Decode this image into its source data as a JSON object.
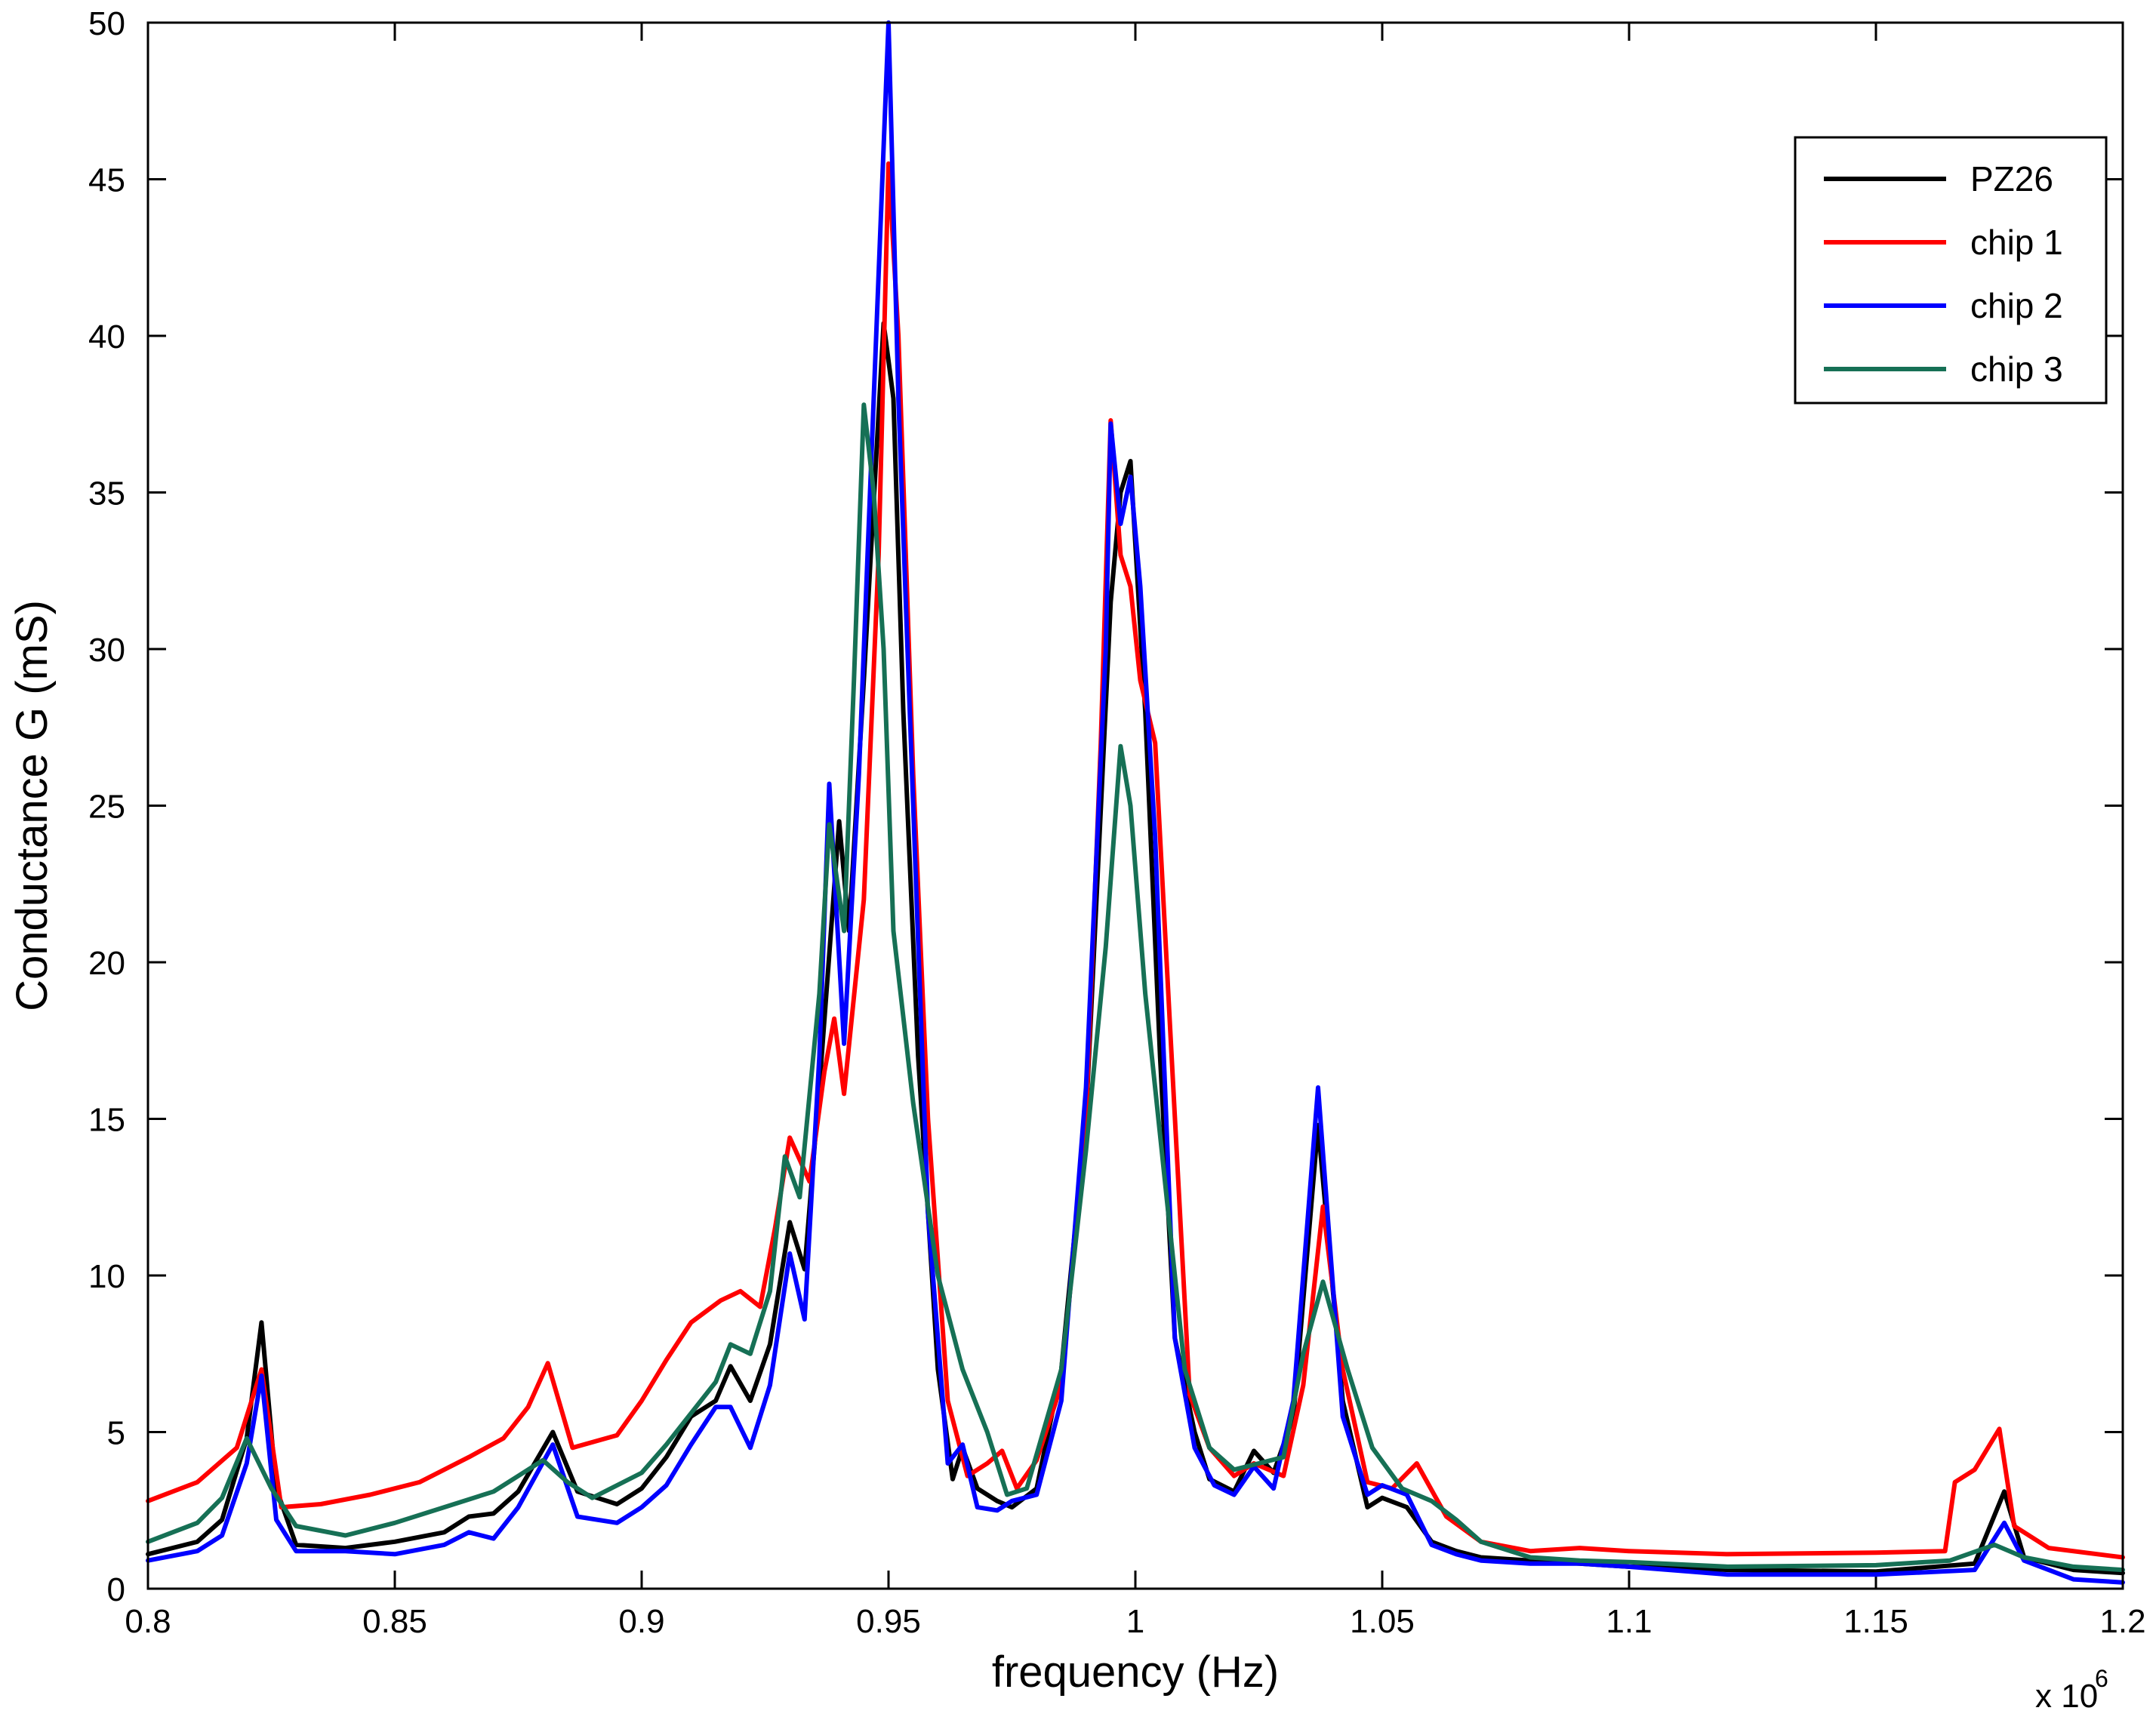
{
  "chart_data": {
    "type": "line",
    "title": "",
    "xlabel": "frequency (Hz)",
    "ylabel": "Conductance G (mS)",
    "x_exponent_label": "x 10",
    "x_exponent_power": "6",
    "xlim": [
      0.8,
      1.2
    ],
    "ylim": [
      0,
      50
    ],
    "xticks": [
      0.8,
      0.85,
      0.9,
      0.95,
      1.0,
      1.05,
      1.1,
      1.15,
      1.2
    ],
    "xtick_labels": [
      "0.8",
      "0.85",
      "0.9",
      "0.95",
      "1",
      "1.05",
      "1.1",
      "1.15",
      "1.2"
    ],
    "yticks": [
      0,
      5,
      10,
      15,
      20,
      25,
      30,
      35,
      40,
      45,
      50
    ],
    "ytick_labels": [
      "0",
      "5",
      "10",
      "15",
      "20",
      "25",
      "30",
      "35",
      "40",
      "45",
      "50"
    ],
    "grid": false,
    "legend_position": "top-right",
    "series": [
      {
        "name": "PZ26",
        "color": "#000000",
        "points": [
          [
            0.8,
            1.1
          ],
          [
            0.81,
            1.5
          ],
          [
            0.815,
            2.2
          ],
          [
            0.82,
            4.8
          ],
          [
            0.823,
            8.5
          ],
          [
            0.826,
            3.2
          ],
          [
            0.83,
            1.4
          ],
          [
            0.84,
            1.3
          ],
          [
            0.85,
            1.5
          ],
          [
            0.86,
            1.8
          ],
          [
            0.865,
            2.3
          ],
          [
            0.87,
            2.4
          ],
          [
            0.875,
            3.1
          ],
          [
            0.882,
            5.0
          ],
          [
            0.887,
            3.1
          ],
          [
            0.895,
            2.7
          ],
          [
            0.9,
            3.2
          ],
          [
            0.905,
            4.2
          ],
          [
            0.91,
            5.5
          ],
          [
            0.915,
            6.0
          ],
          [
            0.918,
            7.1
          ],
          [
            0.922,
            6.0
          ],
          [
            0.926,
            7.8
          ],
          [
            0.93,
            11.7
          ],
          [
            0.933,
            10.2
          ],
          [
            0.936,
            16.0
          ],
          [
            0.94,
            24.5
          ],
          [
            0.942,
            21.0
          ],
          [
            0.945,
            29.0
          ],
          [
            0.949,
            40.4
          ],
          [
            0.951,
            38.0
          ],
          [
            0.953,
            28.0
          ],
          [
            0.956,
            17.0
          ],
          [
            0.96,
            7.0
          ],
          [
            0.963,
            3.5
          ],
          [
            0.965,
            4.5
          ],
          [
            0.968,
            3.2
          ],
          [
            0.972,
            2.8
          ],
          [
            0.975,
            2.6
          ],
          [
            0.98,
            3.2
          ],
          [
            0.985,
            7.0
          ],
          [
            0.99,
            15.0
          ],
          [
            0.995,
            31.5
          ],
          [
            0.997,
            35.0
          ],
          [
            0.999,
            36.0
          ],
          [
            1.002,
            28.0
          ],
          [
            1.005,
            17.0
          ],
          [
            1.008,
            8.0
          ],
          [
            1.012,
            5.0
          ],
          [
            1.015,
            3.5
          ],
          [
            1.02,
            3.1
          ],
          [
            1.024,
            4.4
          ],
          [
            1.028,
            3.7
          ],
          [
            1.032,
            5.5
          ],
          [
            1.037,
            14.8
          ],
          [
            1.042,
            6.0
          ],
          [
            1.047,
            2.6
          ],
          [
            1.05,
            2.9
          ],
          [
            1.055,
            2.6
          ],
          [
            1.06,
            1.5
          ],
          [
            1.065,
            1.2
          ],
          [
            1.07,
            1.0
          ],
          [
            1.08,
            0.9
          ],
          [
            1.09,
            0.8
          ],
          [
            1.1,
            0.7
          ],
          [
            1.12,
            0.6
          ],
          [
            1.15,
            0.55
          ],
          [
            1.17,
            0.8
          ],
          [
            1.176,
            3.1
          ],
          [
            1.18,
            1.0
          ],
          [
            1.19,
            0.6
          ],
          [
            1.2,
            0.5
          ]
        ]
      },
      {
        "name": "chip 1",
        "color": "#ff0000",
        "points": [
          [
            0.8,
            2.8
          ],
          [
            0.81,
            3.4
          ],
          [
            0.818,
            4.5
          ],
          [
            0.823,
            7.0
          ],
          [
            0.827,
            2.6
          ],
          [
            0.835,
            2.7
          ],
          [
            0.845,
            3.0
          ],
          [
            0.855,
            3.4
          ],
          [
            0.865,
            4.2
          ],
          [
            0.872,
            4.8
          ],
          [
            0.877,
            5.8
          ],
          [
            0.881,
            7.2
          ],
          [
            0.886,
            4.5
          ],
          [
            0.895,
            4.9
          ],
          [
            0.9,
            6.0
          ],
          [
            0.905,
            7.3
          ],
          [
            0.91,
            8.5
          ],
          [
            0.916,
            9.2
          ],
          [
            0.92,
            9.5
          ],
          [
            0.924,
            9.0
          ],
          [
            0.927,
            11.5
          ],
          [
            0.93,
            14.4
          ],
          [
            0.934,
            13.0
          ],
          [
            0.937,
            16.5
          ],
          [
            0.939,
            18.2
          ],
          [
            0.941,
            15.8
          ],
          [
            0.945,
            22.0
          ],
          [
            0.948,
            33.0
          ],
          [
            0.95,
            45.5
          ],
          [
            0.952,
            40.0
          ],
          [
            0.955,
            26.0
          ],
          [
            0.958,
            15.0
          ],
          [
            0.962,
            6.0
          ],
          [
            0.966,
            3.6
          ],
          [
            0.97,
            4.0
          ],
          [
            0.973,
            4.4
          ],
          [
            0.976,
            3.2
          ],
          [
            0.98,
            4.1
          ],
          [
            0.985,
            6.5
          ],
          [
            0.99,
            15.0
          ],
          [
            0.993,
            27.0
          ],
          [
            0.995,
            37.3
          ],
          [
            0.997,
            33.0
          ],
          [
            0.999,
            32.0
          ],
          [
            1.001,
            29.0
          ],
          [
            1.004,
            27.0
          ],
          [
            1.007,
            18.0
          ],
          [
            1.011,
            6.2
          ],
          [
            1.015,
            4.5
          ],
          [
            1.02,
            3.6
          ],
          [
            1.024,
            4.0
          ],
          [
            1.03,
            3.6
          ],
          [
            1.034,
            6.5
          ],
          [
            1.038,
            12.2
          ],
          [
            1.042,
            7.0
          ],
          [
            1.047,
            3.4
          ],
          [
            1.052,
            3.2
          ],
          [
            1.057,
            4.0
          ],
          [
            1.063,
            2.3
          ],
          [
            1.07,
            1.5
          ],
          [
            1.08,
            1.2
          ],
          [
            1.09,
            1.3
          ],
          [
            1.1,
            1.2
          ],
          [
            1.12,
            1.1
          ],
          [
            1.15,
            1.15
          ],
          [
            1.164,
            1.2
          ],
          [
            1.166,
            3.4
          ],
          [
            1.17,
            3.8
          ],
          [
            1.175,
            5.1
          ],
          [
            1.178,
            2.0
          ],
          [
            1.185,
            1.3
          ],
          [
            1.2,
            1.0
          ]
        ]
      },
      {
        "name": "chip 2",
        "color": "#0000ff",
        "points": [
          [
            0.8,
            0.9
          ],
          [
            0.81,
            1.2
          ],
          [
            0.815,
            1.7
          ],
          [
            0.82,
            4.0
          ],
          [
            0.823,
            6.8
          ],
          [
            0.826,
            2.2
          ],
          [
            0.83,
            1.2
          ],
          [
            0.84,
            1.2
          ],
          [
            0.85,
            1.1
          ],
          [
            0.86,
            1.4
          ],
          [
            0.865,
            1.8
          ],
          [
            0.87,
            1.6
          ],
          [
            0.875,
            2.6
          ],
          [
            0.882,
            4.6
          ],
          [
            0.887,
            2.3
          ],
          [
            0.895,
            2.1
          ],
          [
            0.9,
            2.6
          ],
          [
            0.905,
            3.3
          ],
          [
            0.91,
            4.6
          ],
          [
            0.915,
            5.8
          ],
          [
            0.918,
            5.8
          ],
          [
            0.922,
            4.5
          ],
          [
            0.926,
            6.5
          ],
          [
            0.93,
            10.7
          ],
          [
            0.933,
            8.6
          ],
          [
            0.936,
            17.0
          ],
          [
            0.938,
            25.7
          ],
          [
            0.941,
            17.4
          ],
          [
            0.944,
            26.0
          ],
          [
            0.947,
            38.0
          ],
          [
            0.95,
            50.0
          ],
          [
            0.952,
            38.0
          ],
          [
            0.955,
            25.0
          ],
          [
            0.958,
            12.0
          ],
          [
            0.962,
            4.0
          ],
          [
            0.965,
            4.6
          ],
          [
            0.968,
            2.6
          ],
          [
            0.972,
            2.5
          ],
          [
            0.975,
            2.8
          ],
          [
            0.98,
            3.0
          ],
          [
            0.985,
            6.0
          ],
          [
            0.99,
            16.0
          ],
          [
            0.994,
            30.0
          ],
          [
            0.995,
            37.2
          ],
          [
            0.997,
            34.0
          ],
          [
            0.999,
            35.5
          ],
          [
            1.001,
            32.0
          ],
          [
            1.004,
            24.0
          ],
          [
            1.008,
            8.0
          ],
          [
            1.012,
            4.5
          ],
          [
            1.016,
            3.3
          ],
          [
            1.02,
            3.0
          ],
          [
            1.024,
            3.9
          ],
          [
            1.028,
            3.2
          ],
          [
            1.032,
            6.0
          ],
          [
            1.037,
            16.0
          ],
          [
            1.042,
            5.5
          ],
          [
            1.047,
            3.0
          ],
          [
            1.05,
            3.3
          ],
          [
            1.055,
            3.0
          ],
          [
            1.06,
            1.4
          ],
          [
            1.065,
            1.1
          ],
          [
            1.07,
            0.9
          ],
          [
            1.08,
            0.8
          ],
          [
            1.09,
            0.8
          ],
          [
            1.1,
            0.7
          ],
          [
            1.12,
            0.45
          ],
          [
            1.15,
            0.45
          ],
          [
            1.17,
            0.6
          ],
          [
            1.176,
            2.1
          ],
          [
            1.18,
            0.9
          ],
          [
            1.19,
            0.3
          ],
          [
            1.2,
            0.2
          ]
        ]
      },
      {
        "name": "chip 3",
        "color": "#167055",
        "points": [
          [
            0.8,
            1.5
          ],
          [
            0.81,
            2.1
          ],
          [
            0.815,
            2.9
          ],
          [
            0.82,
            4.8
          ],
          [
            0.825,
            3.2
          ],
          [
            0.83,
            2.0
          ],
          [
            0.84,
            1.7
          ],
          [
            0.85,
            2.1
          ],
          [
            0.86,
            2.6
          ],
          [
            0.87,
            3.1
          ],
          [
            0.875,
            3.6
          ],
          [
            0.88,
            4.1
          ],
          [
            0.885,
            3.4
          ],
          [
            0.89,
            2.9
          ],
          [
            0.9,
            3.7
          ],
          [
            0.905,
            4.6
          ],
          [
            0.91,
            5.6
          ],
          [
            0.915,
            6.6
          ],
          [
            0.918,
            7.8
          ],
          [
            0.922,
            7.5
          ],
          [
            0.926,
            9.5
          ],
          [
            0.929,
            13.8
          ],
          [
            0.932,
            12.5
          ],
          [
            0.936,
            19.0
          ],
          [
            0.938,
            24.4
          ],
          [
            0.941,
            21.0
          ],
          [
            0.943,
            29.0
          ],
          [
            0.945,
            37.8
          ],
          [
            0.947,
            35.0
          ],
          [
            0.949,
            30.0
          ],
          [
            0.951,
            21.0
          ],
          [
            0.955,
            15.5
          ],
          [
            0.96,
            10.0
          ],
          [
            0.965,
            7.0
          ],
          [
            0.97,
            5.0
          ],
          [
            0.974,
            3.0
          ],
          [
            0.978,
            3.2
          ],
          [
            0.985,
            7.0
          ],
          [
            0.99,
            14.0
          ],
          [
            0.994,
            20.5
          ],
          [
            0.997,
            26.9
          ],
          [
            0.999,
            25.0
          ],
          [
            1.002,
            19.0
          ],
          [
            1.006,
            13.0
          ],
          [
            1.01,
            7.0
          ],
          [
            1.015,
            4.5
          ],
          [
            1.02,
            3.8
          ],
          [
            1.025,
            4.0
          ],
          [
            1.03,
            4.2
          ],
          [
            1.034,
            7.5
          ],
          [
            1.038,
            9.8
          ],
          [
            1.043,
            7.0
          ],
          [
            1.048,
            4.5
          ],
          [
            1.054,
            3.2
          ],
          [
            1.06,
            2.8
          ],
          [
            1.065,
            2.2
          ],
          [
            1.07,
            1.5
          ],
          [
            1.08,
            1.0
          ],
          [
            1.09,
            0.9
          ],
          [
            1.1,
            0.85
          ],
          [
            1.12,
            0.7
          ],
          [
            1.15,
            0.75
          ],
          [
            1.165,
            0.9
          ],
          [
            1.174,
            1.4
          ],
          [
            1.18,
            1.0
          ],
          [
            1.19,
            0.7
          ],
          [
            1.2,
            0.6
          ]
        ]
      }
    ]
  }
}
